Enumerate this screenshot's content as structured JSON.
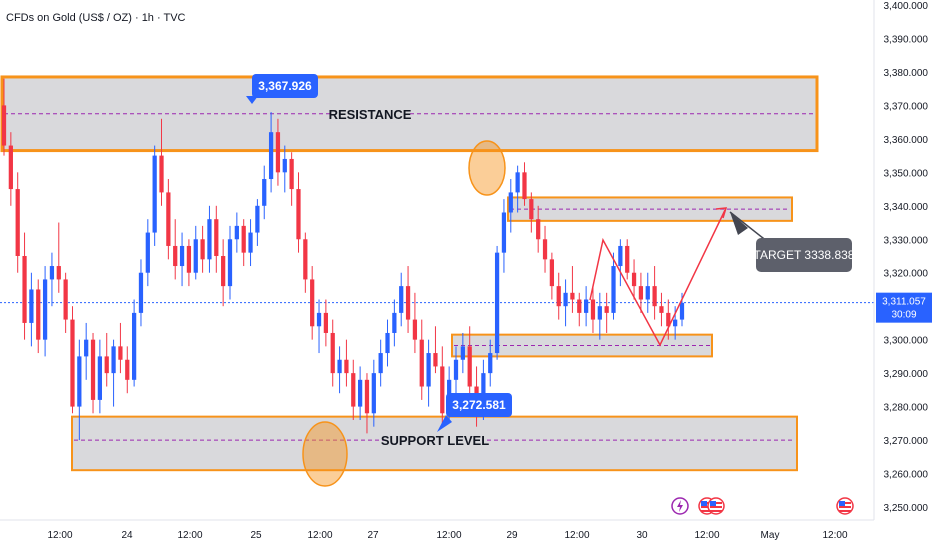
{
  "header": {
    "title": "CFDs on Gold (US$ / OZ) · 1h · TVC"
  },
  "chart_data": {
    "type": "candlestick",
    "ylim": [
      3245,
      3400
    ],
    "y_ticks": [
      "3,250.000",
      "3,260.000",
      "3,270.000",
      "3,280.000",
      "3,290.000",
      "3,300.000",
      "3,310.000",
      "3,320.000",
      "3,330.000",
      "3,340.000",
      "3,350.000",
      "3,360.000",
      "3,370.000",
      "3,380.000",
      "3,390.000",
      "3,400.000"
    ],
    "x_ticks": [
      "12:00",
      "24",
      "12:00",
      "25",
      "12:00",
      "27",
      "12:00",
      "29",
      "12:00",
      "30",
      "12:00",
      "May",
      "12:00"
    ],
    "last_price": "3,311.057",
    "countdown": "30:09",
    "zones": {
      "resistance": {
        "label": "RESISTANCE",
        "low": 3356.5,
        "high": 3378.5
      },
      "support": {
        "label": "SUPPORT LEVEL",
        "low": 3261,
        "high": 3277
      },
      "target_box": {
        "low": 3335.5,
        "high": 3342.5
      },
      "mid_support_box": {
        "low": 3295,
        "high": 3301.5
      }
    },
    "callouts": {
      "high": "3,367.926",
      "low": "3,272.581",
      "target": "TARGET 3338.838"
    },
    "candles": [
      [
        3370,
        3378,
        3355,
        3358
      ],
      [
        3358,
        3362,
        3340,
        3345
      ],
      [
        3345,
        3350,
        3320,
        3325
      ],
      [
        3325,
        3332,
        3300,
        3305
      ],
      [
        3305,
        3320,
        3298,
        3315
      ],
      [
        3315,
        3318,
        3296,
        3300
      ],
      [
        3300,
        3322,
        3295,
        3318
      ],
      [
        3318,
        3326,
        3310,
        3322
      ],
      [
        3322,
        3335,
        3314,
        3318
      ],
      [
        3318,
        3320,
        3302,
        3306
      ],
      [
        3306,
        3310,
        3278,
        3280
      ],
      [
        3280,
        3300,
        3270,
        3295
      ],
      [
        3295,
        3305,
        3288,
        3300
      ],
      [
        3300,
        3302,
        3278,
        3282
      ],
      [
        3282,
        3300,
        3278,
        3295
      ],
      [
        3295,
        3302,
        3286,
        3290
      ],
      [
        3290,
        3300,
        3280,
        3298
      ],
      [
        3298,
        3305,
        3290,
        3294
      ],
      [
        3294,
        3298,
        3284,
        3288
      ],
      [
        3288,
        3312,
        3286,
        3308
      ],
      [
        3308,
        3324,
        3304,
        3320
      ],
      [
        3320,
        3336,
        3316,
        3332
      ],
      [
        3332,
        3358,
        3328,
        3355
      ],
      [
        3355,
        3366,
        3340,
        3344
      ],
      [
        3344,
        3348,
        3324,
        3328
      ],
      [
        3328,
        3336,
        3318,
        3322
      ],
      [
        3322,
        3332,
        3316,
        3328
      ],
      [
        3328,
        3330,
        3316,
        3320
      ],
      [
        3320,
        3334,
        3318,
        3330
      ],
      [
        3330,
        3334,
        3320,
        3324
      ],
      [
        3324,
        3340,
        3320,
        3336
      ],
      [
        3336,
        3340,
        3320,
        3325
      ],
      [
        3325,
        3330,
        3310,
        3316
      ],
      [
        3316,
        3334,
        3312,
        3330
      ],
      [
        3330,
        3338,
        3326,
        3334
      ],
      [
        3334,
        3336,
        3322,
        3326
      ],
      [
        3326,
        3336,
        3322,
        3332
      ],
      [
        3332,
        3342,
        3328,
        3340
      ],
      [
        3340,
        3352,
        3336,
        3348
      ],
      [
        3348,
        3368,
        3344,
        3362
      ],
      [
        3362,
        3366,
        3346,
        3350
      ],
      [
        3350,
        3358,
        3344,
        3354
      ],
      [
        3354,
        3356,
        3340,
        3345
      ],
      [
        3345,
        3350,
        3326,
        3330
      ],
      [
        3330,
        3332,
        3314,
        3318
      ],
      [
        3318,
        3322,
        3300,
        3304
      ],
      [
        3304,
        3312,
        3296,
        3308
      ],
      [
        3308,
        3312,
        3298,
        3302
      ],
      [
        3302,
        3306,
        3286,
        3290
      ],
      [
        3290,
        3298,
        3284,
        3294
      ],
      [
        3294,
        3300,
        3286,
        3290
      ],
      [
        3290,
        3294,
        3276,
        3280
      ],
      [
        3280,
        3292,
        3276,
        3288
      ],
      [
        3288,
        3290,
        3272,
        3278
      ],
      [
        3278,
        3294,
        3274,
        3290
      ],
      [
        3290,
        3300,
        3286,
        3296
      ],
      [
        3296,
        3306,
        3292,
        3302
      ],
      [
        3302,
        3312,
        3298,
        3308
      ],
      [
        3308,
        3320,
        3304,
        3316
      ],
      [
        3316,
        3322,
        3302,
        3306
      ],
      [
        3306,
        3314,
        3296,
        3300
      ],
      [
        3300,
        3306,
        3282,
        3286
      ],
      [
        3286,
        3300,
        3280,
        3296
      ],
      [
        3296,
        3304,
        3290,
        3292
      ],
      [
        3292,
        3298,
        3274,
        3278
      ],
      [
        3278,
        3292,
        3276,
        3288
      ],
      [
        3288,
        3298,
        3284,
        3294
      ],
      [
        3294,
        3302,
        3290,
        3298
      ],
      [
        3298,
        3304,
        3282,
        3286
      ],
      [
        3286,
        3292,
        3274,
        3280
      ],
      [
        3280,
        3294,
        3276,
        3290
      ],
      [
        3290,
        3300,
        3286,
        3296
      ],
      [
        3296,
        3328,
        3294,
        3326
      ],
      [
        3326,
        3342,
        3320,
        3338
      ],
      [
        3338,
        3348,
        3332,
        3344
      ],
      [
        3344,
        3352,
        3338,
        3350
      ],
      [
        3350,
        3353,
        3340,
        3342
      ],
      [
        3342,
        3344,
        3332,
        3336
      ],
      [
        3336,
        3340,
        3326,
        3330
      ],
      [
        3330,
        3334,
        3320,
        3324
      ],
      [
        3324,
        3326,
        3312,
        3316
      ],
      [
        3316,
        3320,
        3306,
        3310
      ],
      [
        3310,
        3318,
        3304,
        3314
      ],
      [
        3314,
        3322,
        3308,
        3312
      ],
      [
        3312,
        3314,
        3304,
        3308
      ],
      [
        3308,
        3316,
        3304,
        3312
      ],
      [
        3312,
        3316,
        3302,
        3306
      ],
      [
        3306,
        3314,
        3300,
        3310
      ],
      [
        3310,
        3314,
        3302,
        3308
      ],
      [
        3308,
        3326,
        3306,
        3322
      ],
      [
        3322,
        3330,
        3316,
        3328
      ],
      [
        3328,
        3330,
        3318,
        3320
      ],
      [
        3320,
        3324,
        3312,
        3316
      ],
      [
        3316,
        3320,
        3308,
        3312
      ],
      [
        3312,
        3320,
        3308,
        3316
      ],
      [
        3316,
        3322,
        3306,
        3310
      ],
      [
        3310,
        3314,
        3304,
        3308
      ],
      [
        3308,
        3312,
        3300,
        3304
      ],
      [
        3304,
        3310,
        3300,
        3306
      ],
      [
        3306,
        3314,
        3304,
        3311
      ]
    ]
  }
}
